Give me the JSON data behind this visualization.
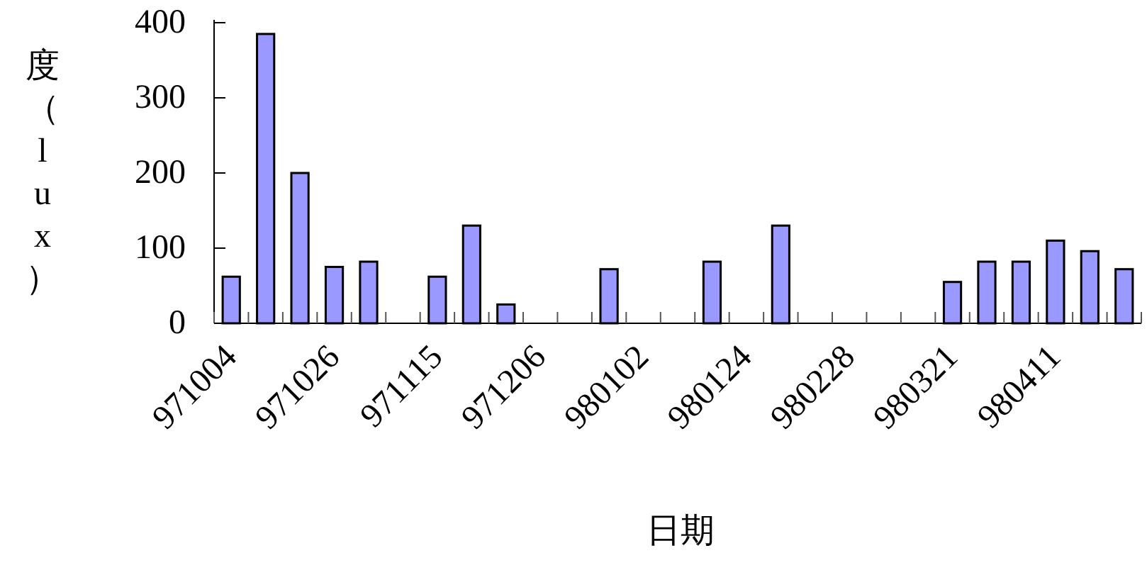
{
  "chart_data": {
    "type": "bar",
    "xlabel": "日期",
    "ylabel": "度（lux）",
    "categories": [
      "971004",
      null,
      null,
      "971026",
      null,
      null,
      "971115",
      null,
      null,
      "971206",
      null,
      null,
      "980102",
      null,
      null,
      "980124",
      null,
      null,
      "980228",
      null,
      null,
      "980321",
      null,
      null,
      "980411",
      null,
      null
    ],
    "values": [
      62,
      385,
      200,
      75,
      82,
      null,
      62,
      130,
      25,
      null,
      null,
      72,
      null,
      null,
      82,
      null,
      130,
      null,
      null,
      null,
      null,
      55,
      82,
      82,
      110,
      96,
      72
    ],
    "color": "#9999ff",
    "ylim": [
      0,
      400
    ],
    "yticks": [
      0,
      100,
      200,
      300,
      400
    ],
    "grid": false
  }
}
